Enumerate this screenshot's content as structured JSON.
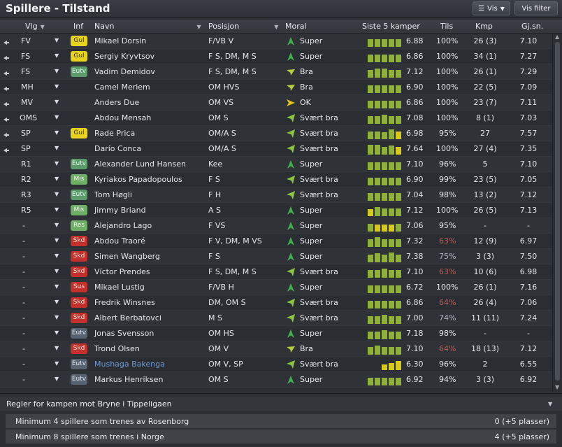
{
  "window": {
    "title": "Spillere - Tilstand",
    "vis_button": "Vis",
    "filter_button": "Vis filter"
  },
  "columns": {
    "vlg": "Vlg",
    "inf": "Inf",
    "navn": "Navn",
    "posisjon": "Posisjon",
    "moral": "Moral",
    "form": "Siste 5 kamper",
    "tils": "Tils",
    "kmp": "Kmp",
    "gjsn": "Gj.sn."
  },
  "colors": {
    "form_green": "#8fb13a",
    "form_yellow": "#d6c91d",
    "moral_super": "#3fae4f",
    "moral_svaert_bra": "#8fc43f",
    "moral_bra": "#b7cf3b",
    "moral_ok": "#e0c21a",
    "low_condition": "#c45a55",
    "link_name": "#6f98d3"
  },
  "players": [
    {
      "pinned": true,
      "vlg": "FV",
      "inf": "Gul",
      "inf_type": "gul",
      "navn": "Mikael Dorsin",
      "pos": "F/VB V",
      "moral": "Super",
      "moral_icon": "super-icon",
      "form": [
        0.7,
        0.7,
        0.7,
        0.7,
        0.7
      ],
      "form_colors": [
        "g",
        "g",
        "g",
        "g",
        "g"
      ],
      "avg": "6.88",
      "tils": "100%",
      "tils_state": "ok",
      "kmp": "26 (3)",
      "gjsn": "7.10"
    },
    {
      "pinned": true,
      "vlg": "FS",
      "inf": "Gul",
      "inf_type": "gul",
      "navn": "Sergiy Kryvtsov",
      "pos": "F S, DM, M S",
      "moral": "Super",
      "moral_icon": "super-icon",
      "form": [
        0.7,
        0.7,
        0.7,
        0.7,
        0.7
      ],
      "form_colors": [
        "g",
        "g",
        "g",
        "g",
        "g"
      ],
      "avg": "6.86",
      "tils": "100%",
      "tils_state": "ok",
      "kmp": "34 (1)",
      "gjsn": "7.27"
    },
    {
      "pinned": true,
      "vlg": "FS",
      "inf": "Eutv",
      "inf_type": "eutv",
      "navn": "Vadim Demidov",
      "pos": "F S, DM, M S",
      "moral": "Bra",
      "moral_icon": "bra-icon",
      "form": [
        0.7,
        0.8,
        0.8,
        0.7,
        0.7
      ],
      "form_colors": [
        "g",
        "g",
        "g",
        "g",
        "g"
      ],
      "avg": "7.12",
      "tils": "100%",
      "tils_state": "ok",
      "kmp": "26 (1)",
      "gjsn": "7.29"
    },
    {
      "pinned": true,
      "vlg": "MH",
      "inf": "",
      "inf_type": "none",
      "navn": "Camel Meriem",
      "pos": "OM HVS",
      "moral": "Bra",
      "moral_icon": "bra-icon",
      "form": [
        0.7,
        0.7,
        0.7,
        0.7,
        0.7
      ],
      "form_colors": [
        "g",
        "g",
        "g",
        "g",
        "g"
      ],
      "avg": "6.90",
      "tils": "100%",
      "tils_state": "ok",
      "kmp": "22 (5)",
      "gjsn": "7.09"
    },
    {
      "pinned": true,
      "vlg": "MV",
      "inf": "",
      "inf_type": "none",
      "navn": "Anders Due",
      "pos": "OM VS",
      "moral": "OK",
      "moral_icon": "ok-icon",
      "form": [
        0.7,
        0.7,
        0.7,
        0.7,
        0.7
      ],
      "form_colors": [
        "g",
        "g",
        "g",
        "g",
        "g"
      ],
      "avg": "6.86",
      "tils": "100%",
      "tils_state": "ok",
      "kmp": "23 (7)",
      "gjsn": "7.11"
    },
    {
      "pinned": true,
      "vlg": "OMS",
      "inf": "",
      "inf_type": "none",
      "navn": "Abdou Mensah",
      "pos": "OM S",
      "moral": "Svært bra",
      "moral_icon": "svaert-bra-icon",
      "form": [
        0.7,
        0.7,
        0.8,
        0.7,
        0.7
      ],
      "form_colors": [
        "g",
        "g",
        "g",
        "g",
        "g"
      ],
      "avg": "7.08",
      "tils": "100%",
      "tils_state": "ok",
      "kmp": "8 (1)",
      "gjsn": "7.03"
    },
    {
      "pinned": true,
      "vlg": "SP",
      "inf": "Gul",
      "inf_type": "gul",
      "navn": "Rade Prica",
      "pos": "OM/A S",
      "moral": "Svært bra",
      "moral_icon": "svaert-bra-icon",
      "form": [
        0.7,
        0.7,
        0.6,
        0.9,
        0.7
      ],
      "form_colors": [
        "g",
        "g",
        "g",
        "g",
        "y"
      ],
      "avg": "6.98",
      "tils": "95%",
      "tils_state": "ok",
      "kmp": "27",
      "gjsn": "7.57"
    },
    {
      "pinned": true,
      "vlg": "SP",
      "inf": "",
      "inf_type": "none",
      "navn": "Darío Conca",
      "pos": "OM/A S",
      "moral": "Svært bra",
      "moral_icon": "svaert-bra-icon",
      "form": [
        0.9,
        0.9,
        0.7,
        0.8,
        0.7
      ],
      "form_colors": [
        "g",
        "g",
        "g",
        "g",
        "y"
      ],
      "avg": "7.64",
      "tils": "100%",
      "tils_state": "ok",
      "kmp": "27 (4)",
      "gjsn": "7.35"
    },
    {
      "pinned": false,
      "vlg": "R1",
      "inf": "Eutv",
      "inf_type": "eutv",
      "navn": "Alexander Lund Hansen",
      "pos": "Kee",
      "moral": "Super",
      "moral_icon": "super-icon",
      "form": [
        0.7,
        0.7,
        0.7,
        0.7,
        0.7
      ],
      "form_colors": [
        "g",
        "g",
        "g",
        "g",
        "g"
      ],
      "avg": "7.10",
      "tils": "96%",
      "tils_state": "ok",
      "kmp": "5",
      "gjsn": "7.10"
    },
    {
      "pinned": false,
      "vlg": "R2",
      "inf": "Mis",
      "inf_type": "mis",
      "navn": "Kyriakos Papadopoulos",
      "pos": "F S",
      "moral": "Svært bra",
      "moral_icon": "svaert-bra-icon",
      "form": [
        0.7,
        0.7,
        0.7,
        0.7,
        0.7
      ],
      "form_colors": [
        "g",
        "g",
        "g",
        "g",
        "g"
      ],
      "avg": "6.90",
      "tils": "99%",
      "tils_state": "ok",
      "kmp": "23 (5)",
      "gjsn": "7.05"
    },
    {
      "pinned": false,
      "vlg": "R3",
      "inf": "Eutv",
      "inf_type": "eutv",
      "navn": "Tom Høgli",
      "pos": "F H",
      "moral": "Svært bra",
      "moral_icon": "svaert-bra-icon",
      "form": [
        0.7,
        0.7,
        0.7,
        0.7,
        0.7
      ],
      "form_colors": [
        "g",
        "g",
        "g",
        "g",
        "g"
      ],
      "avg": "7.04",
      "tils": "98%",
      "tils_state": "ok",
      "kmp": "13 (2)",
      "gjsn": "7.12"
    },
    {
      "pinned": false,
      "vlg": "R5",
      "inf": "Mis",
      "inf_type": "mis",
      "navn": "Jimmy Briand",
      "pos": "A S",
      "moral": "Super",
      "moral_icon": "super-icon",
      "form": [
        0.6,
        0.8,
        0.7,
        0.7,
        0.7
      ],
      "form_colors": [
        "y",
        "g",
        "g",
        "g",
        "g"
      ],
      "avg": "7.12",
      "tils": "100%",
      "tils_state": "ok",
      "kmp": "26 (5)",
      "gjsn": "7.13"
    },
    {
      "pinned": false,
      "vlg": "-",
      "inf": "Res",
      "inf_type": "res",
      "navn": "Alejandro Lago",
      "pos": "F VS",
      "moral": "Super",
      "moral_icon": "super-icon",
      "form": [
        0.7,
        0.6,
        0.6,
        0.6,
        0.7
      ],
      "form_colors": [
        "g",
        "y",
        "y",
        "y",
        "g"
      ],
      "avg": "7.06",
      "tils": "95%",
      "tils_state": "ok",
      "kmp": "-",
      "gjsn": "-"
    },
    {
      "pinned": false,
      "vlg": "-",
      "inf": "Skd",
      "inf_type": "skd",
      "navn": "Abdou Traoré",
      "pos": "F V, DM, M VS",
      "moral": "Super",
      "moral_icon": "super-icon",
      "form": [
        0.7,
        0.9,
        0.7,
        0.7,
        0.7
      ],
      "form_colors": [
        "g",
        "g",
        "g",
        "g",
        "g"
      ],
      "avg": "7.32",
      "tils": "63%",
      "tils_state": "low",
      "kmp": "12 (9)",
      "gjsn": "6.97"
    },
    {
      "pinned": false,
      "vlg": "-",
      "inf": "Skd",
      "inf_type": "skd",
      "navn": "Simen Wangberg",
      "pos": "F S",
      "moral": "Super",
      "moral_icon": "super-icon",
      "form": [
        0.7,
        0.8,
        0.7,
        0.9,
        0.7
      ],
      "form_colors": [
        "g",
        "g",
        "g",
        "g",
        "g"
      ],
      "avg": "7.38",
      "tils": "75%",
      "tils_state": "mid",
      "kmp": "3 (3)",
      "gjsn": "7.50"
    },
    {
      "pinned": false,
      "vlg": "-",
      "inf": "Skd",
      "inf_type": "skd",
      "navn": "Víctor Prendes",
      "pos": "F S, DM, M S",
      "moral": "Svært bra",
      "moral_icon": "svaert-bra-icon",
      "form": [
        0.7,
        0.7,
        0.8,
        0.7,
        0.7
      ],
      "form_colors": [
        "g",
        "g",
        "g",
        "g",
        "g"
      ],
      "avg": "7.10",
      "tils": "63%",
      "tils_state": "low",
      "kmp": "10 (6)",
      "gjsn": "6.98"
    },
    {
      "pinned": false,
      "vlg": "-",
      "inf": "Sus",
      "inf_type": "sus",
      "navn": "Mikael Lustig",
      "pos": "F/VB H",
      "moral": "Super",
      "moral_icon": "super-icon",
      "form": [
        0.7,
        0.7,
        0.7,
        0.7,
        0.7
      ],
      "form_colors": [
        "g",
        "g",
        "g",
        "g",
        "g"
      ],
      "avg": "6.72",
      "tils": "100%",
      "tils_state": "ok",
      "kmp": "26 (1)",
      "gjsn": "7.16"
    },
    {
      "pinned": false,
      "vlg": "-",
      "inf": "Skd",
      "inf_type": "skd",
      "navn": "Fredrik Winsnes",
      "pos": "DM, OM S",
      "moral": "Svært bra",
      "moral_icon": "svaert-bra-icon",
      "form": [
        0.7,
        0.7,
        0.7,
        0.7,
        0.7
      ],
      "form_colors": [
        "g",
        "g",
        "g",
        "g",
        "g"
      ],
      "avg": "6.86",
      "tils": "64%",
      "tils_state": "low",
      "kmp": "26 (4)",
      "gjsn": "7.06"
    },
    {
      "pinned": false,
      "vlg": "-",
      "inf": "Skd",
      "inf_type": "skd",
      "navn": "Albert Berbatovci",
      "pos": "M S",
      "moral": "Svært bra",
      "moral_icon": "svaert-bra-icon",
      "form": [
        0.7,
        0.7,
        0.8,
        0.7,
        0.7
      ],
      "form_colors": [
        "g",
        "g",
        "g",
        "g",
        "g"
      ],
      "avg": "7.00",
      "tils": "74%",
      "tils_state": "mid",
      "kmp": "11 (11)",
      "gjsn": "7.24"
    },
    {
      "pinned": false,
      "vlg": "-",
      "inf": "Eutv",
      "inf_type": "eutvgrey",
      "navn": "Jonas Svensson",
      "pos": "OM HS",
      "moral": "Super",
      "moral_icon": "super-icon",
      "form": [
        0.7,
        0.7,
        0.8,
        0.7,
        0.7
      ],
      "form_colors": [
        "g",
        "g",
        "g",
        "g",
        "g"
      ],
      "avg": "7.18",
      "tils": "98%",
      "tils_state": "ok",
      "kmp": "-",
      "gjsn": "-"
    },
    {
      "pinned": false,
      "vlg": "-",
      "inf": "Skd",
      "inf_type": "skd",
      "navn": "Trond Olsen",
      "pos": "OM V",
      "moral": "Bra",
      "moral_icon": "bra-icon",
      "form": [
        0.7,
        0.8,
        0.7,
        0.7,
        0.7
      ],
      "form_colors": [
        "g",
        "g",
        "g",
        "g",
        "g"
      ],
      "avg": "7.10",
      "tils": "64%",
      "tils_state": "low",
      "kmp": "18 (13)",
      "gjsn": "7.12"
    },
    {
      "pinned": false,
      "vlg": "-",
      "inf": "Eutv",
      "inf_type": "eutvgrey",
      "navn": "Mushaga Bakenga",
      "navn_link": true,
      "pos": "OM V, SP",
      "moral": "Svært bra",
      "moral_icon": "svaert-bra-icon",
      "form": [
        0,
        0,
        0.5,
        0.6,
        0.8
      ],
      "form_colors": [
        "y",
        "y",
        "y",
        "y",
        "y"
      ],
      "avg": "6.30",
      "tils": "96%",
      "tils_state": "ok",
      "kmp": "2",
      "gjsn": "6.55"
    },
    {
      "pinned": false,
      "vlg": "-",
      "inf": "Eutv",
      "inf_type": "eutvgrey",
      "navn": "Markus Henriksen",
      "pos": "OM S",
      "moral": "Super",
      "moral_icon": "super-icon",
      "form": [
        0.7,
        0.7,
        0.7,
        0.7,
        0.7
      ],
      "form_colors": [
        "g",
        "g",
        "g",
        "g",
        "g"
      ],
      "avg": "6.92",
      "tils": "94%",
      "tils_state": "ok",
      "kmp": "3 (3)",
      "gjsn": "6.92"
    }
  ],
  "rules": {
    "title": "Regler for kampen mot Bryne i Tippeligaen",
    "items": [
      {
        "text": "Minimum 4 spillere som trenes av Rosenborg",
        "value": "0 (+5 plasser)"
      },
      {
        "text": "Minimum 8 spillere som trenes i Norge",
        "value": "4 (+5 plasser)"
      }
    ]
  }
}
